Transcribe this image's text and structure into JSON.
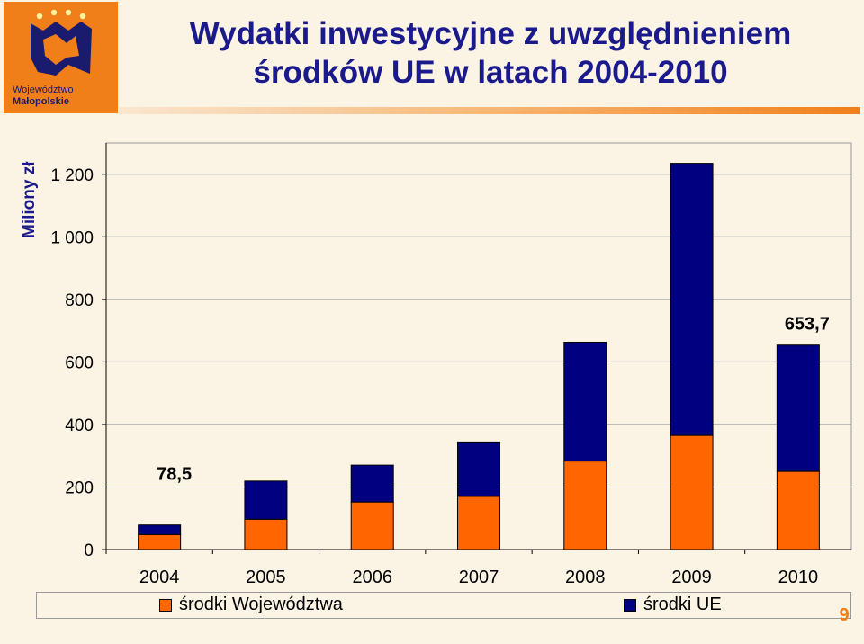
{
  "logo": {
    "line1": "Województwo",
    "line2": "Małopolskie",
    "icon": "malopolska-crown-emblem-icon"
  },
  "title": {
    "line1": "Wydatki inwestycyjne z uwzględnieniem",
    "line2": "środków UE w latach 2004-2010"
  },
  "page_number": "9",
  "colors": {
    "accent": "#f07f1a",
    "series_voivodeship": "#ff6600",
    "series_eu": "#000080",
    "title": "#1a1a8c",
    "background": "#fbf3e4"
  },
  "chart_data": {
    "type": "bar",
    "stacked": true,
    "categories": [
      "2004",
      "2005",
      "2006",
      "2007",
      "2008",
      "2009",
      "2010"
    ],
    "series": [
      {
        "name": "środki Województwa",
        "values": [
          48,
          97,
          152,
          170,
          283,
          365,
          250
        ]
      },
      {
        "name": "środki UE",
        "values": [
          30.5,
          122,
          118,
          174,
          380,
          870,
          403.7
        ]
      }
    ],
    "totals": [
      78.5,
      219,
      270,
      344,
      663,
      1235,
      653.7
    ],
    "data_labels": [
      {
        "category": "2004",
        "text": "78,5"
      },
      {
        "category": "2010",
        "text": "653,7"
      }
    ],
    "title": "",
    "xlabel": "",
    "ylabel": "Miliony zł",
    "ylim": [
      0,
      1300
    ],
    "yticks": [
      0,
      200,
      400,
      600,
      800,
      1000,
      1200
    ],
    "ytick_labels": [
      "0",
      "200",
      "400",
      "600",
      "800",
      "1 000",
      "1 200"
    ],
    "grid": true,
    "legend_position": "bottom"
  }
}
